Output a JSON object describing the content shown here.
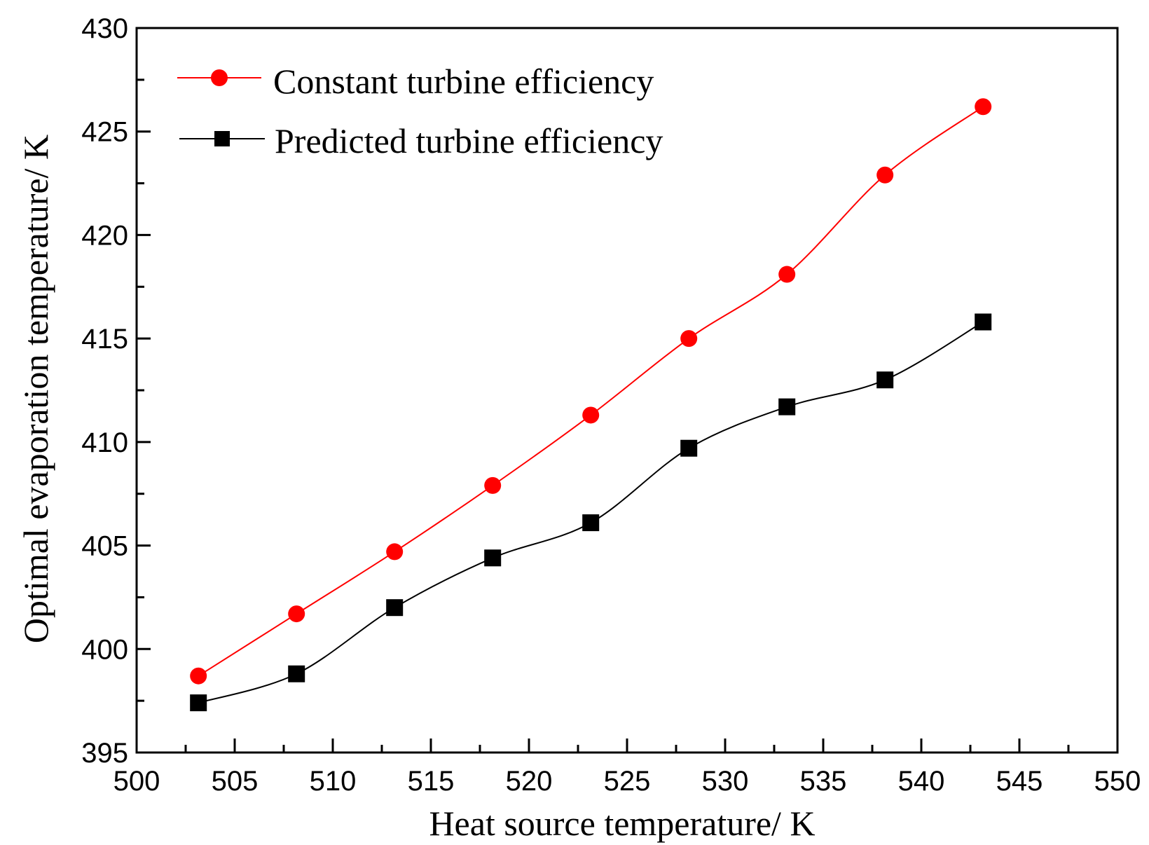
{
  "chart_data": {
    "type": "line",
    "xlabel": "Heat source temperature/ K",
    "ylabel": "Optimal evaporation temperature/ K",
    "xlim": [
      500,
      550
    ],
    "ylim": [
      395,
      430
    ],
    "x_ticks": [
      "500",
      "505",
      "510",
      "515",
      "520",
      "525",
      "530",
      "535",
      "540",
      "545",
      "550"
    ],
    "y_ticks": [
      "395",
      "400",
      "405",
      "410",
      "415",
      "420",
      "425",
      "430"
    ],
    "grid": false,
    "legend_position": "top-left",
    "x": [
      503.15,
      508.15,
      513.15,
      518.15,
      523.15,
      528.15,
      533.15,
      538.15,
      543.15
    ],
    "series": [
      {
        "name": "Constant turbine efficiency",
        "color": "#ff0000",
        "marker": "circle",
        "values": [
          398.7,
          401.7,
          404.7,
          407.9,
          411.3,
          415.0,
          418.1,
          422.9,
          426.2
        ]
      },
      {
        "name": "Predicted turbine efficiency",
        "color": "#000000",
        "marker": "square",
        "values": [
          397.4,
          398.8,
          402.0,
          404.4,
          406.1,
          409.7,
          411.7,
          413.0,
          415.8
        ]
      }
    ]
  }
}
